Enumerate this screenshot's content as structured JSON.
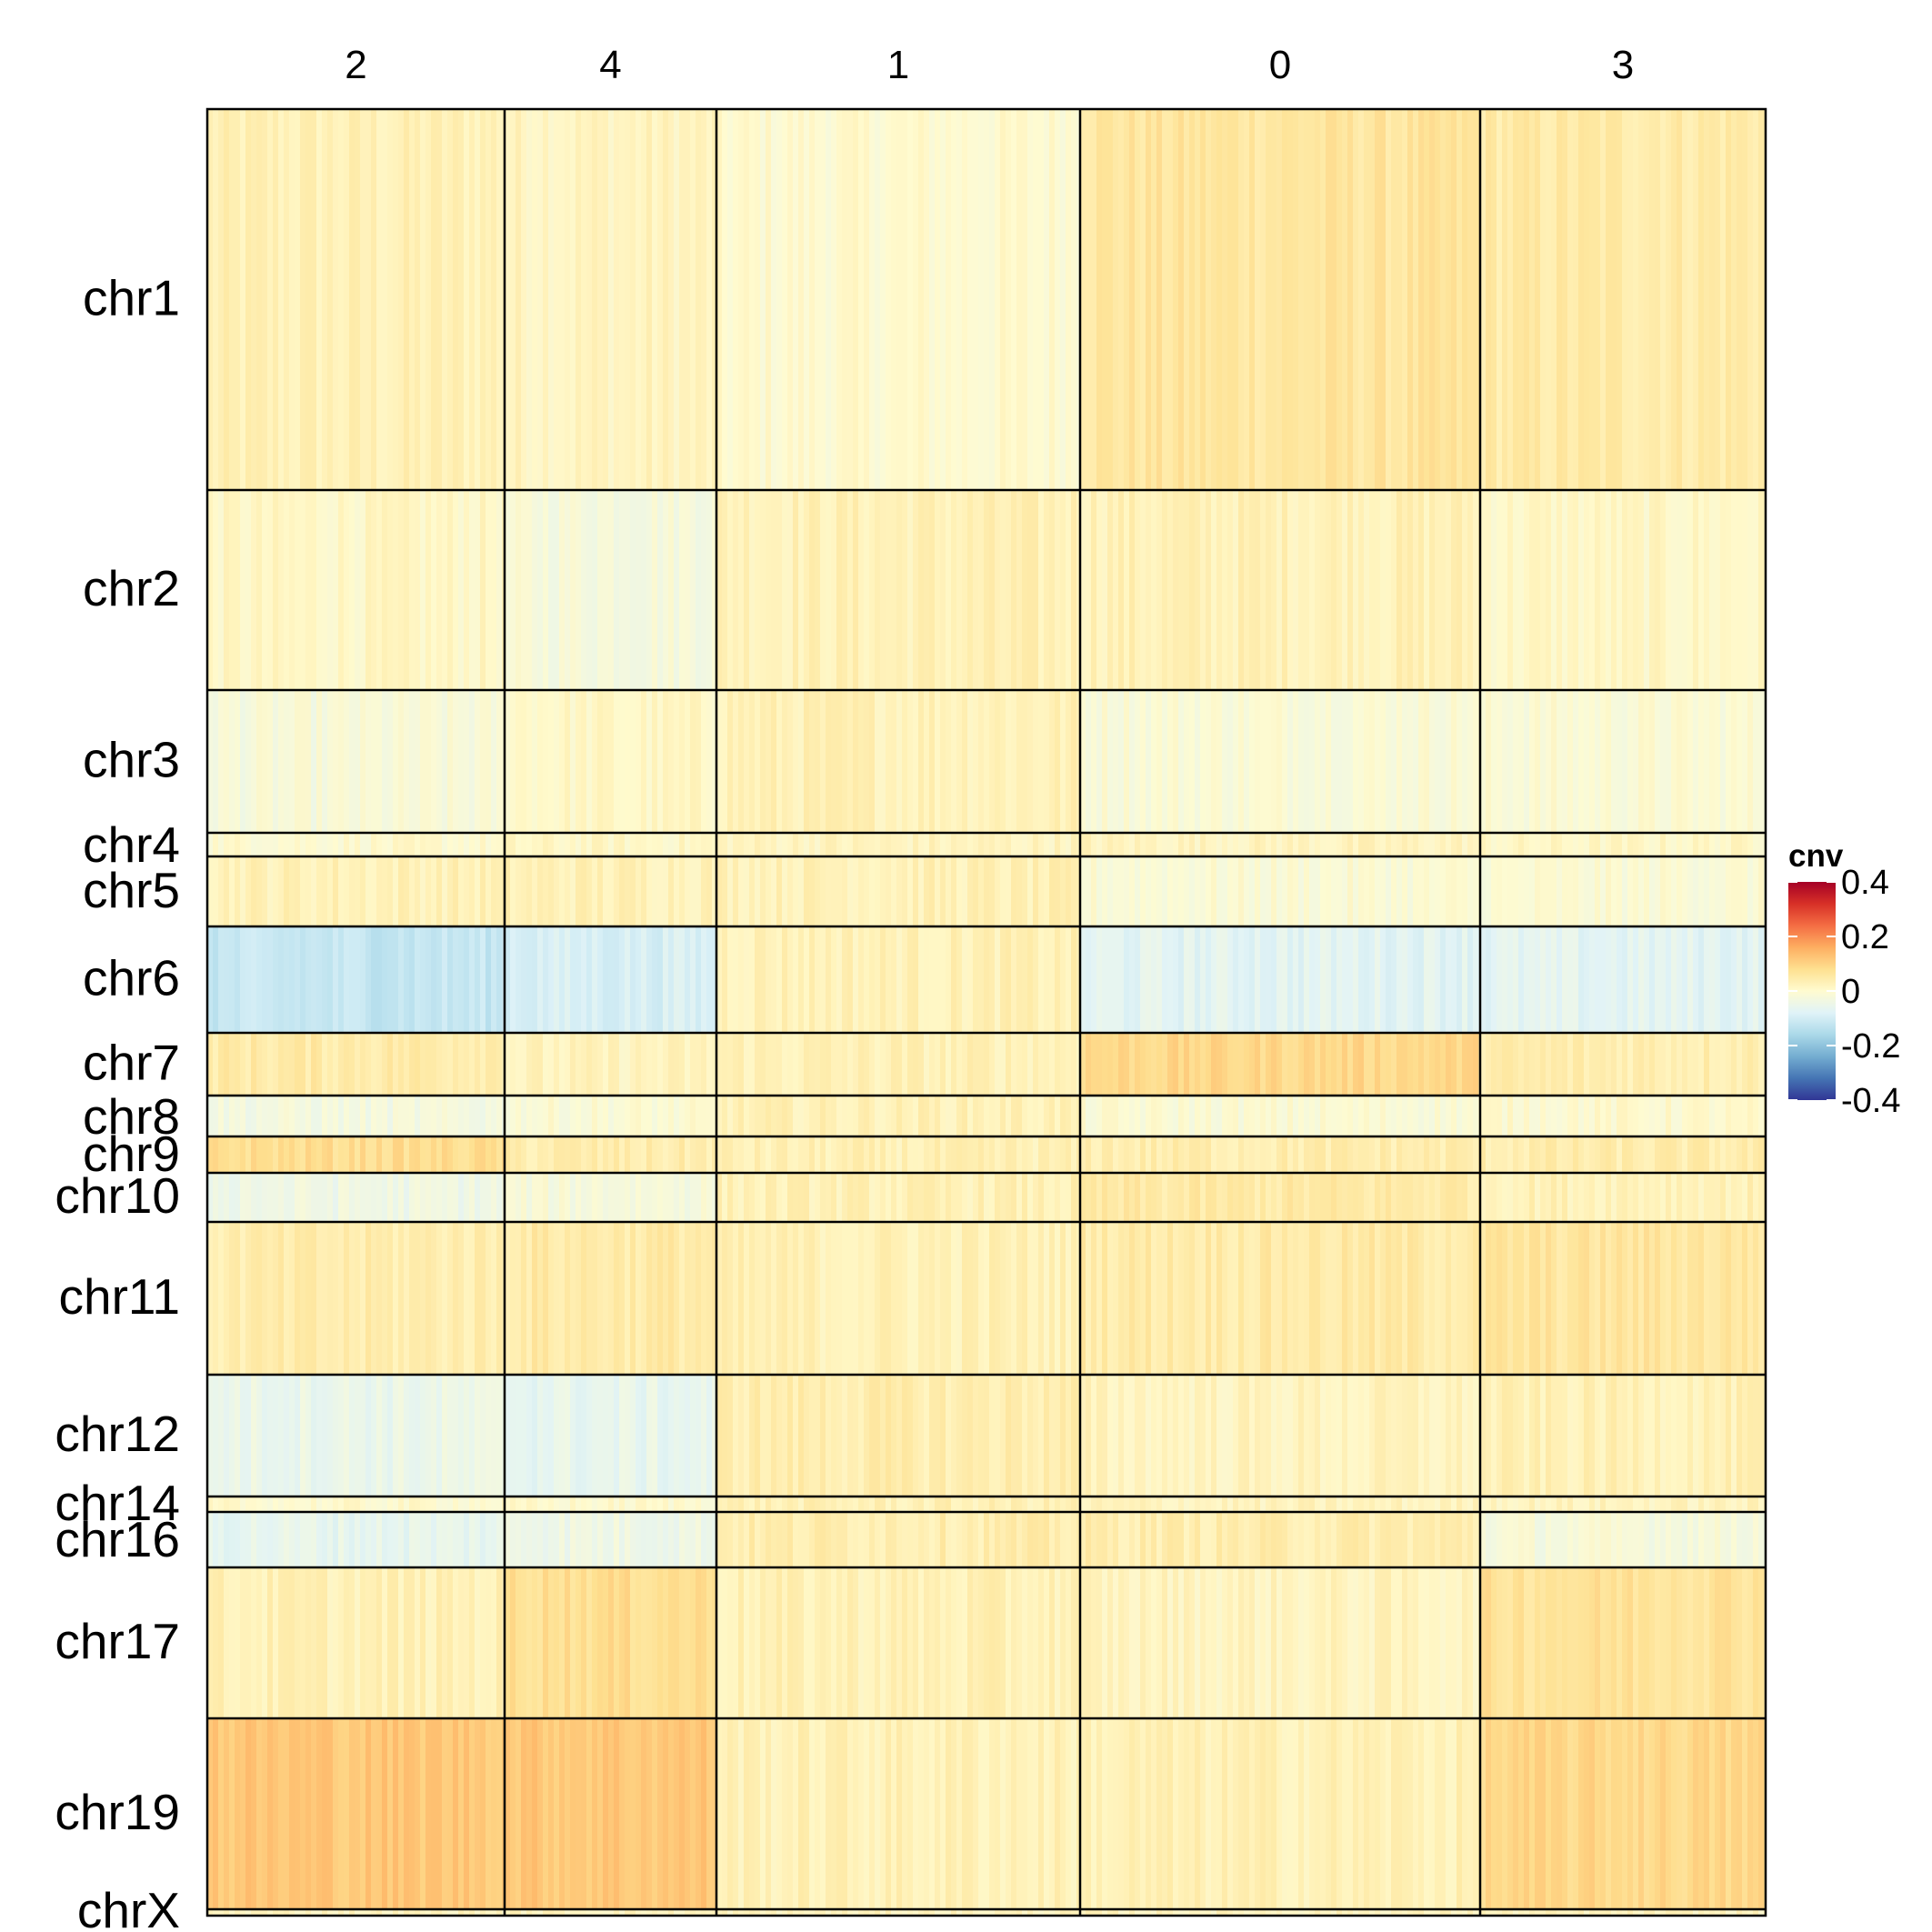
{
  "chart_data": {
    "type": "heatmap",
    "clusters": [
      {
        "label": "2",
        "highlight": false
      },
      {
        "label": "4",
        "highlight": false
      },
      {
        "label": "1",
        "highlight": true
      },
      {
        "label": "0",
        "highlight": false
      },
      {
        "label": "3",
        "highlight": false
      }
    ],
    "chromosomes": [
      "chr1",
      "chr2",
      "chr3",
      "chr4",
      "chr5",
      "chr6",
      "chr7",
      "chr8",
      "chr9",
      "chr10",
      "chr11",
      "chr12",
      "chr14",
      "chr16",
      "chr17",
      "chr19",
      "chrX"
    ],
    "legend": {
      "title": "cnv",
      "ticks": [
        "0.4",
        "0.2",
        "0",
        "-0.2",
        "-0.4"
      ],
      "range": [
        -0.4,
        0.4
      ],
      "colors": [
        "#313695",
        "#4575b4",
        "#74add1",
        "#abd9e9",
        "#e0f3f8",
        "#fffbd0",
        "#fee090",
        "#fdae61",
        "#f46d43",
        "#d73027",
        "#a50026"
      ]
    },
    "highlight_color": "#e31a1c",
    "approx_mean_cnv": {
      "chr1": [
        0.03,
        0.02,
        0.0,
        0.06,
        0.05
      ],
      "chr2": [
        0.01,
        -0.02,
        0.03,
        0.03,
        0.01
      ],
      "chr3": [
        -0.02,
        0.01,
        0.03,
        -0.01,
        -0.01
      ],
      "chr4": [
        0.0,
        0.01,
        0.02,
        0.02,
        0.01
      ],
      "chr5": [
        0.03,
        0.03,
        0.03,
        -0.01,
        -0.01
      ],
      "chr6": [
        -0.12,
        -0.09,
        0.03,
        -0.07,
        -0.07
      ],
      "chr7": [
        0.05,
        0.02,
        0.03,
        0.09,
        0.04
      ],
      "chr8": [
        -0.03,
        -0.01,
        0.03,
        -0.01,
        0.0
      ],
      "chr9": [
        0.08,
        0.04,
        0.03,
        0.04,
        0.04
      ],
      "chr10": [
        -0.04,
        -0.02,
        0.03,
        0.05,
        0.03
      ],
      "chr11": [
        0.04,
        0.05,
        0.03,
        0.05,
        0.06
      ],
      "chr12": [
        -0.05,
        -0.06,
        0.04,
        0.02,
        0.03
      ],
      "chr14": [
        0.0,
        0.0,
        0.03,
        0.02,
        0.02
      ],
      "chr16": [
        -0.06,
        -0.04,
        0.04,
        0.04,
        -0.02
      ],
      "chr17": [
        0.03,
        0.08,
        0.03,
        0.02,
        0.07
      ],
      "chr19": [
        0.12,
        0.12,
        0.03,
        0.03,
        0.09
      ],
      "chrX": [
        0.02,
        0.02,
        0.02,
        0.02,
        0.02
      ]
    }
  }
}
